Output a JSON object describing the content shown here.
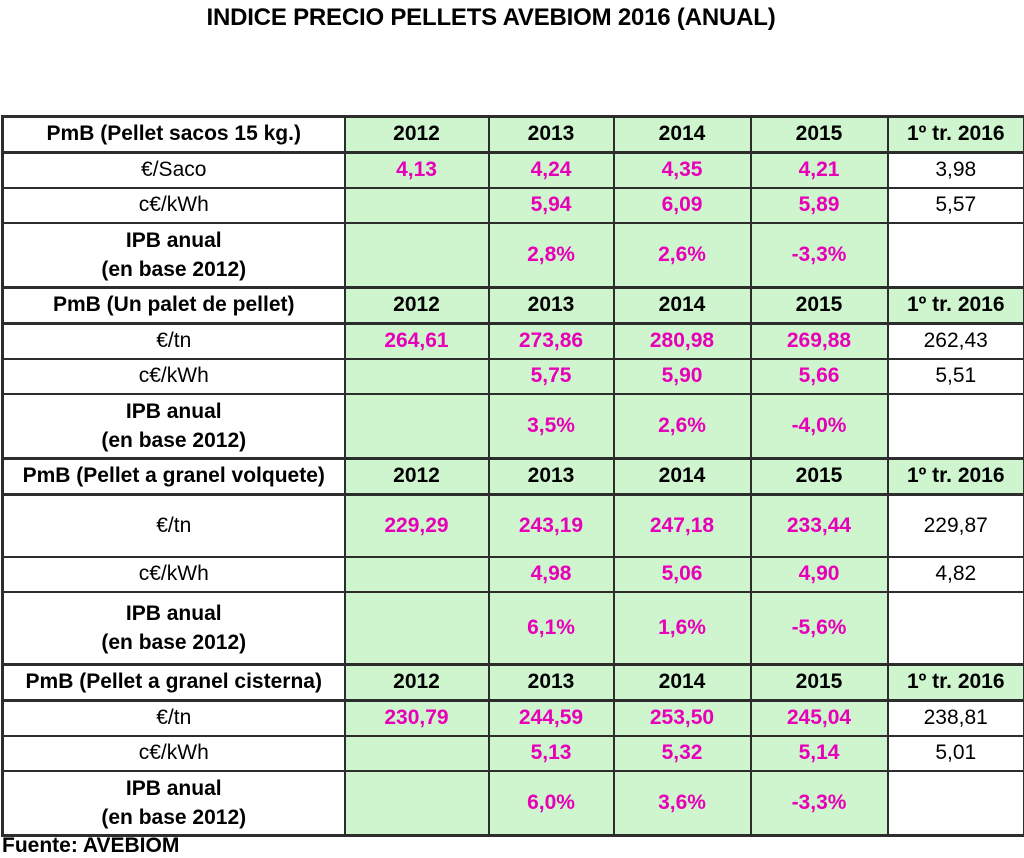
{
  "title": "INDICE PRECIO PELLETS AVEBIOM 2016 (ANUAL)",
  "source": "Fuente: AVEBIOM",
  "colors": {
    "cell_green": "#cff5cf",
    "value_magenta": "#e800b8",
    "border": "#2d2d2d",
    "text": "#000000"
  },
  "columns": [
    "2012",
    "2013",
    "2014",
    "2015",
    "1º tr. 2016"
  ],
  "sections": [
    {
      "header": "PmB (Pellet sacos 15 kg.)",
      "rows": [
        {
          "label": "€/Saco",
          "kind": "value",
          "values": [
            "4,13",
            "4,24",
            "4,35",
            "4,21",
            "3,98"
          ]
        },
        {
          "label": "c€/kWh",
          "kind": "value",
          "values": [
            "",
            "5,94",
            "6,09",
            "5,89",
            "5,57"
          ]
        },
        {
          "label": [
            "IPB anual",
            "(en base 2012)"
          ],
          "kind": "ipb",
          "values": [
            "",
            "2,8%",
            "2,6%",
            "-3,3%",
            ""
          ]
        }
      ]
    },
    {
      "header": "PmB (Un palet de pellet)",
      "rows": [
        {
          "label": "€/tn",
          "kind": "value",
          "values": [
            "264,61",
            "273,86",
            "280,98",
            "269,88",
            "262,43"
          ]
        },
        {
          "label": "c€/kWh",
          "kind": "value",
          "values": [
            "",
            "5,75",
            "5,90",
            "5,66",
            "5,51"
          ]
        },
        {
          "label": [
            "IPB anual",
            "(en base 2012)"
          ],
          "kind": "ipb",
          "values": [
            "",
            "3,5%",
            "2,6%",
            "-4,0%",
            ""
          ]
        }
      ]
    },
    {
      "header": "PmB (Pellet a granel volquete)",
      "rows": [
        {
          "label": "€/tn",
          "kind": "value",
          "values": [
            "229,29",
            "243,19",
            "247,18",
            "233,44",
            "229,87"
          ]
        },
        {
          "label": "c€/kWh",
          "kind": "value",
          "values": [
            "",
            "4,98",
            "5,06",
            "4,90",
            "4,82"
          ]
        },
        {
          "label": [
            "IPB anual",
            "(en base 2012)"
          ],
          "kind": "ipb",
          "values": [
            "",
            "6,1%",
            "1,6%",
            "-5,6%",
            ""
          ]
        }
      ]
    },
    {
      "header": "PmB (Pellet a granel cisterna)",
      "rows": [
        {
          "label": "€/tn",
          "kind": "value",
          "values": [
            "230,79",
            "244,59",
            "253,50",
            "245,04",
            "238,81"
          ]
        },
        {
          "label": "c€/kWh",
          "kind": "value",
          "values": [
            "",
            "5,13",
            "5,32",
            "5,14",
            "5,01"
          ]
        },
        {
          "label": [
            "IPB anual",
            "(en base 2012)"
          ],
          "kind": "ipb",
          "values": [
            "",
            "6,0%",
            "3,6%",
            "-3,3%",
            ""
          ]
        }
      ]
    }
  ],
  "chart_data": {
    "type": "table",
    "title": "INDICE PRECIO PELLETS AVEBIOM 2016 (ANUAL)",
    "source": "Fuente: AVEBIOM",
    "columns": [
      "2012",
      "2013",
      "2014",
      "2015",
      "1º tr. 2016"
    ],
    "row_groups": [
      {
        "group": "PmB (Pellet sacos 15 kg.)",
        "rows": [
          {
            "metric": "€/Saco",
            "values": [
              4.13,
              4.24,
              4.35,
              4.21,
              3.98
            ]
          },
          {
            "metric": "c€/kWh",
            "values": [
              null,
              5.94,
              6.09,
              5.89,
              5.57
            ]
          },
          {
            "metric": "IPB anual (en base 2012)",
            "values": [
              null,
              "2,8%",
              "2,6%",
              "-3,3%",
              null
            ]
          }
        ]
      },
      {
        "group": "PmB (Un palet de pellet)",
        "rows": [
          {
            "metric": "€/tn",
            "values": [
              264.61,
              273.86,
              280.98,
              269.88,
              262.43
            ]
          },
          {
            "metric": "c€/kWh",
            "values": [
              null,
              5.75,
              5.9,
              5.66,
              5.51
            ]
          },
          {
            "metric": "IPB anual (en base 2012)",
            "values": [
              null,
              "3,5%",
              "2,6%",
              "-4,0%",
              null
            ]
          }
        ]
      },
      {
        "group": "PmB (Pellet a granel volquete)",
        "rows": [
          {
            "metric": "€/tn",
            "values": [
              229.29,
              243.19,
              247.18,
              233.44,
              229.87
            ]
          },
          {
            "metric": "c€/kWh",
            "values": [
              null,
              4.98,
              5.06,
              4.9,
              4.82
            ]
          },
          {
            "metric": "IPB anual (en base 2012)",
            "values": [
              null,
              "6,1%",
              "1,6%",
              "-5,6%",
              null
            ]
          }
        ]
      },
      {
        "group": "PmB (Pellet a granel cisterna)",
        "rows": [
          {
            "metric": "€/tn",
            "values": [
              230.79,
              244.59,
              253.5,
              245.04,
              238.81
            ]
          },
          {
            "metric": "c€/kWh",
            "values": [
              null,
              5.13,
              5.32,
              5.14,
              5.01
            ]
          },
          {
            "metric": "IPB anual (en base 2012)",
            "values": [
              null,
              "6,0%",
              "3,6%",
              "-3,3%",
              null
            ]
          }
        ]
      }
    ]
  }
}
